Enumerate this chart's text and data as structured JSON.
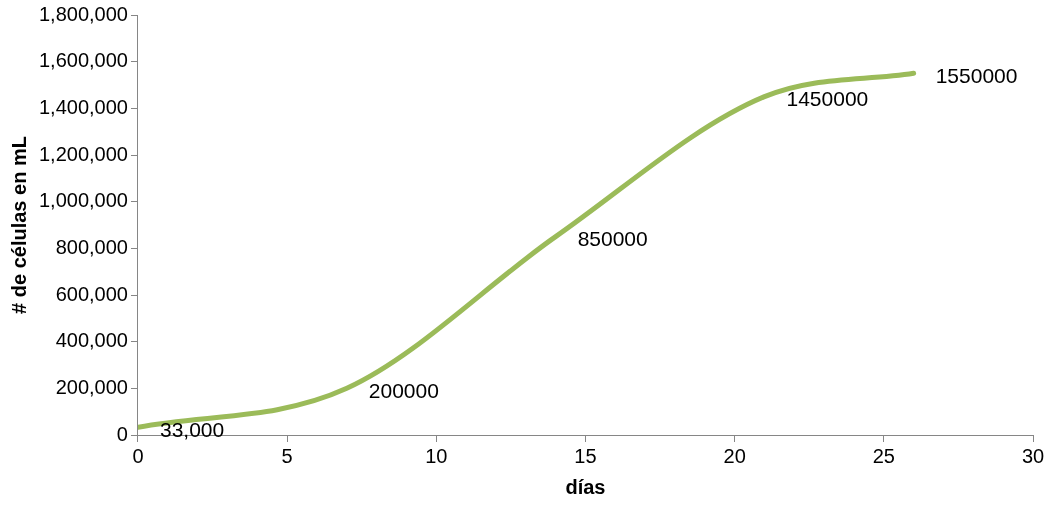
{
  "chart_data": {
    "type": "line",
    "xlabel": "días",
    "ylabel": "# de células en mL",
    "x": [
      0,
      7,
      14,
      21,
      26
    ],
    "series": [
      {
        "color": "#9bbb59",
        "values": [
          33000,
          200000,
          850000,
          1450000,
          1550000
        ],
        "value_labels": [
          "33,000",
          "200000",
          "850000",
          "1450000",
          "1550000"
        ]
      }
    ],
    "xlim": [
      0,
      30
    ],
    "xticks": [
      0,
      5,
      10,
      15,
      20,
      25,
      30
    ],
    "ylim": [
      0,
      1800000
    ],
    "yticks": [
      {
        "value": 0,
        "label": "0"
      },
      {
        "value": 200000,
        "label": "200,000"
      },
      {
        "value": 400000,
        "label": "400,000"
      },
      {
        "value": 600000,
        "label": "600,000"
      },
      {
        "value": 800000,
        "label": "800,000"
      },
      {
        "value": 1000000,
        "label": "1,000,000"
      },
      {
        "value": 1200000,
        "label": "1,200,000"
      },
      {
        "value": 1400000,
        "label": "1,400,000"
      },
      {
        "value": 1600000,
        "label": "1,600,000"
      },
      {
        "value": 1800000,
        "label": "1,800,000"
      }
    ],
    "grid": false,
    "legend": false,
    "marker": "none",
    "line_style": "solid"
  }
}
